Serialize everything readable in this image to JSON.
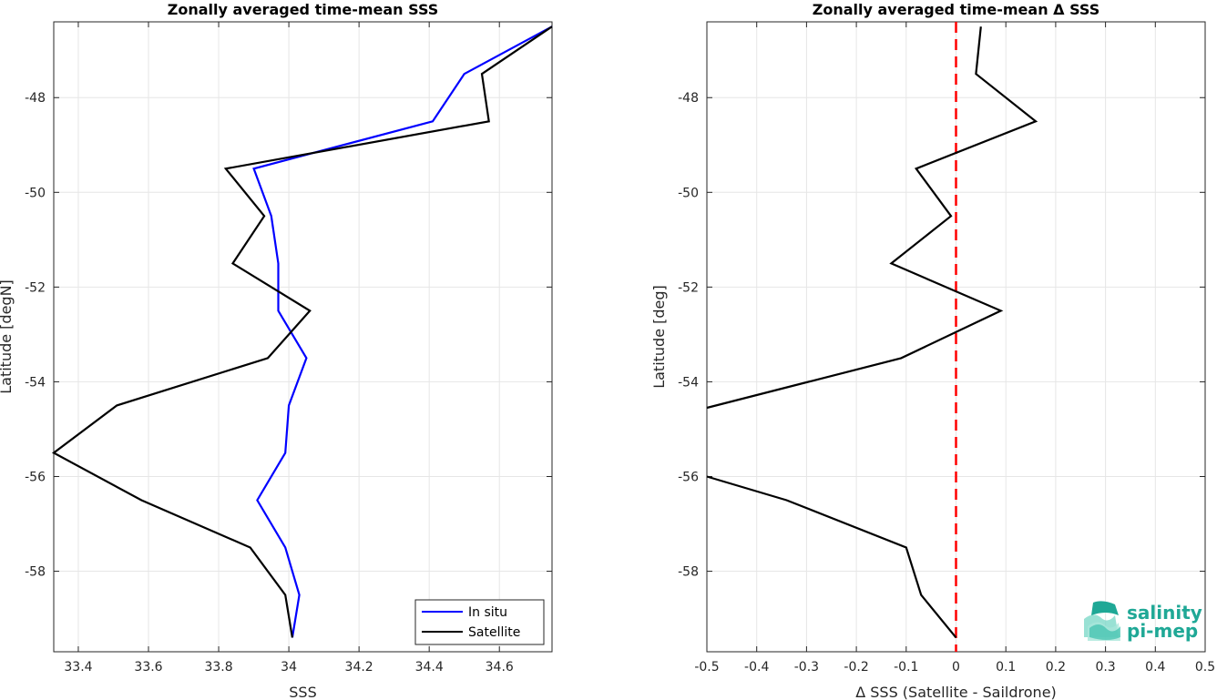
{
  "chart_data": [
    {
      "type": "line",
      "title": "Zonally averaged time-mean SSS",
      "xlabel": "SSS",
      "ylabel": "Latitude [degN]",
      "xlim": [
        33.33,
        34.75
      ],
      "ylim": [
        -59.7,
        -46.4
      ],
      "xticks": [
        33.4,
        33.6,
        33.8,
        34,
        34.2,
        34.4,
        34.6
      ],
      "xtick_labels": [
        "33.4",
        "33.6",
        "33.8",
        "34",
        "34.2",
        "34.4",
        "34.6"
      ],
      "yticks": [
        -48,
        -50,
        -52,
        -54,
        -56,
        -58
      ],
      "ytick_labels": [
        "-48",
        "-50",
        "-52",
        "-54",
        "-56",
        "-58"
      ],
      "grid": true,
      "legend_position": "bottom-right",
      "series": [
        {
          "name": "In situ",
          "color": "#0000ff",
          "x": [
            34.75,
            34.5,
            34.41,
            33.9,
            33.95,
            33.97,
            33.97,
            34.05,
            34.0,
            33.99,
            33.91,
            33.99,
            34.03,
            34.01
          ],
          "y": [
            -46.5,
            -47.5,
            -48.5,
            -49.5,
            -50.5,
            -51.5,
            -52.5,
            -53.5,
            -54.5,
            -55.5,
            -56.5,
            -57.5,
            -58.5,
            -59.4
          ]
        },
        {
          "name": "Satellite",
          "color": "#000000",
          "x": [
            34.75,
            34.55,
            34.57,
            33.82,
            33.93,
            33.84,
            34.06,
            33.94,
            33.51,
            33.33,
            33.58,
            33.89,
            33.99,
            34.01
          ],
          "y": [
            -46.5,
            -47.5,
            -48.5,
            -49.5,
            -50.5,
            -51.5,
            -52.5,
            -53.5,
            -54.5,
            -55.5,
            -56.5,
            -57.5,
            -58.5,
            -59.4
          ]
        }
      ]
    },
    {
      "type": "line",
      "title": "Zonally averaged time-mean Δ SSS",
      "xlabel": "Δ SSS (Satellite - Saildrone)",
      "ylabel": "Latitude [deg]",
      "xlim": [
        -0.5,
        0.5
      ],
      "ylim": [
        -59.7,
        -46.4
      ],
      "xticks": [
        -0.5,
        -0.4,
        -0.3,
        -0.2,
        -0.1,
        0,
        0.1,
        0.2,
        0.3,
        0.4,
        0.5
      ],
      "xtick_labels": [
        "-0.5",
        "-0.4",
        "-0.3",
        "-0.2",
        "-0.1",
        "0",
        "0.1",
        "0.2",
        "0.3",
        "0.4",
        "0.5"
      ],
      "yticks": [
        -48,
        -50,
        -52,
        -54,
        -56,
        -58
      ],
      "ytick_labels": [
        "-48",
        "-50",
        "-52",
        "-54",
        "-56",
        "-58"
      ],
      "grid": true,
      "reference_line": {
        "x": 0,
        "color": "#ff0000",
        "style": "dashed"
      },
      "series": [
        {
          "color": "#000000",
          "x": [
            0.05,
            0.04,
            0.16,
            -0.08,
            -0.01,
            -0.13,
            0.09,
            -0.11,
            -0.5
          ],
          "y": [
            -46.5,
            -47.5,
            -48.5,
            -49.5,
            -50.5,
            -51.5,
            -52.5,
            -53.5,
            -54.55
          ]
        },
        {
          "color": "#000000",
          "x": [
            -0.5,
            -0.34,
            -0.1,
            -0.07,
            0.0
          ],
          "y": [
            -56.0,
            -56.5,
            -57.5,
            -58.5,
            -59.4
          ]
        }
      ]
    }
  ],
  "logo": {
    "line1": "salinity",
    "line2": "pi-mep",
    "color": "#1fa896"
  }
}
